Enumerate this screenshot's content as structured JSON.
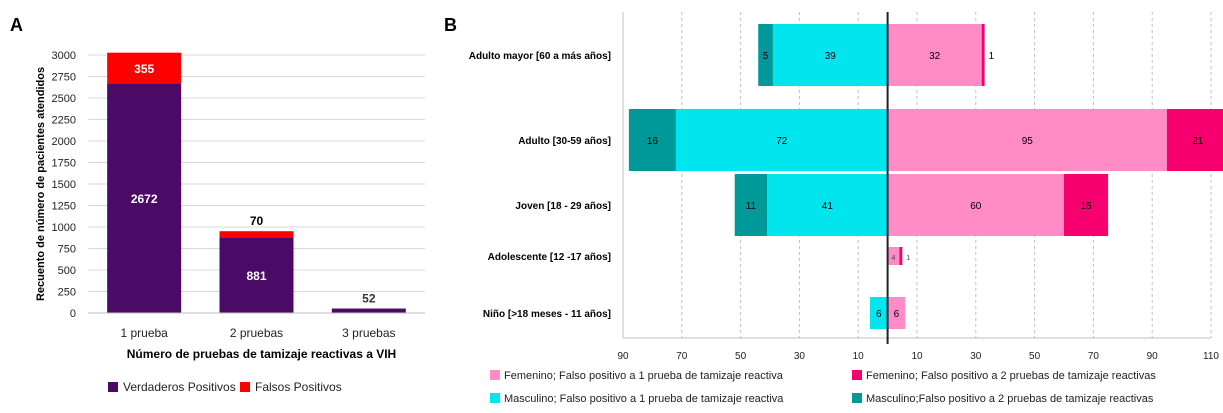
{
  "chart_data": [
    {
      "panel_label": "A",
      "type": "bar",
      "stacked": true,
      "categories": [
        "1 prueba",
        "2 pruebas",
        "3 pruebas"
      ],
      "series": [
        {
          "name": "Verdaderos Positivos",
          "values": [
            2672,
            881,
            52
          ],
          "color": "#4b0a66"
        },
        {
          "name": "Falsos Positivos",
          "values": [
            355,
            70,
            0
          ],
          "color": "#ff0000"
        }
      ],
      "xlabel": "Número de pruebas de tamizaje reactivas a VIH",
      "ylabel": "Recuento de número de pacientes atendidos",
      "ylim": [
        0,
        3000
      ],
      "yticks": [
        0,
        250,
        500,
        750,
        1000,
        1250,
        1500,
        1750,
        2000,
        2250,
        2500,
        2750,
        3000
      ],
      "ytick_labels": [
        "0",
        "250",
        "500",
        "750",
        "1000",
        "1250",
        "1500",
        "1750",
        "2000",
        "2250",
        "2500",
        "2750",
        "3000"
      ],
      "data_labels": [
        {
          "category": "1 prueba",
          "series": "Verdaderos Positivos",
          "text": "2672",
          "color": "#ffffff"
        },
        {
          "category": "1 prueba",
          "series": "Falsos Positivos",
          "text": "355",
          "color": "#ffffff"
        },
        {
          "category": "2 pruebas",
          "series": "Verdaderos Positivos",
          "text": "881",
          "color": "#ffffff"
        },
        {
          "category": "2 pruebas",
          "series": "Falsos Positivos",
          "text": "70",
          "color": "#000000"
        },
        {
          "category": "3 pruebas",
          "series": "Verdaderos Positivos",
          "text": "52",
          "color": "#333333"
        }
      ],
      "grid": true,
      "legend_position": "bottom"
    },
    {
      "panel_label": "B",
      "type": "bar",
      "orientation": "horizontal",
      "layout": "population-pyramid",
      "categories": [
        "Adulto mayor [60 a más años]",
        "Adulto [30-59 años]",
        "Joven [18 - 29 años]",
        "Adolescente [12 -17 años]",
        "Niño [>18 meses - 11 años]"
      ],
      "series": [
        {
          "name": "Masculino; Falso positivo a 1 prueba de tamizaje reactiva",
          "side": "left",
          "values": [
            39,
            72,
            41,
            0,
            6
          ],
          "color": "#00e5ee"
        },
        {
          "name": "Masculino;Falso positivo a 2 pruebas de tamizaje reactivas",
          "side": "left",
          "values": [
            5,
            16,
            11,
            0,
            0
          ],
          "color": "#00999a"
        },
        {
          "name": "Femenino; Falso positivo a 1 prueba de tamizaje reactiva",
          "side": "right",
          "values": [
            32,
            95,
            60,
            4,
            6
          ],
          "color": "#ff8cc6"
        },
        {
          "name": "Femenino; Falso positivo a 2 pruebas de tamizaje reactivas",
          "side": "right",
          "values": [
            1,
            21,
            15,
            1,
            0
          ],
          "color": "#f5006e"
        }
      ],
      "xlim": [
        -90,
        110
      ],
      "xticks": [
        -90,
        -70,
        -50,
        -30,
        -10,
        10,
        30,
        50,
        70,
        90,
        110
      ],
      "xtick_labels": [
        "90",
        "70",
        "50",
        "30",
        "10",
        "10",
        "30",
        "50",
        "70",
        "90",
        "110"
      ],
      "grid": true,
      "legend_position": "bottom",
      "legend_rows": [
        [
          "Femenino; Falso positivo a 1 prueba de tamizaje reactiva",
          "Femenino; Falso positivo a 2 pruebas de tamizaje reactivas"
        ],
        [
          "Masculino; Falso positivo a 1 prueba de tamizaje reactiva",
          "Masculino;Falso positivo a 2 pruebas de tamizaje reactivas"
        ]
      ]
    }
  ]
}
